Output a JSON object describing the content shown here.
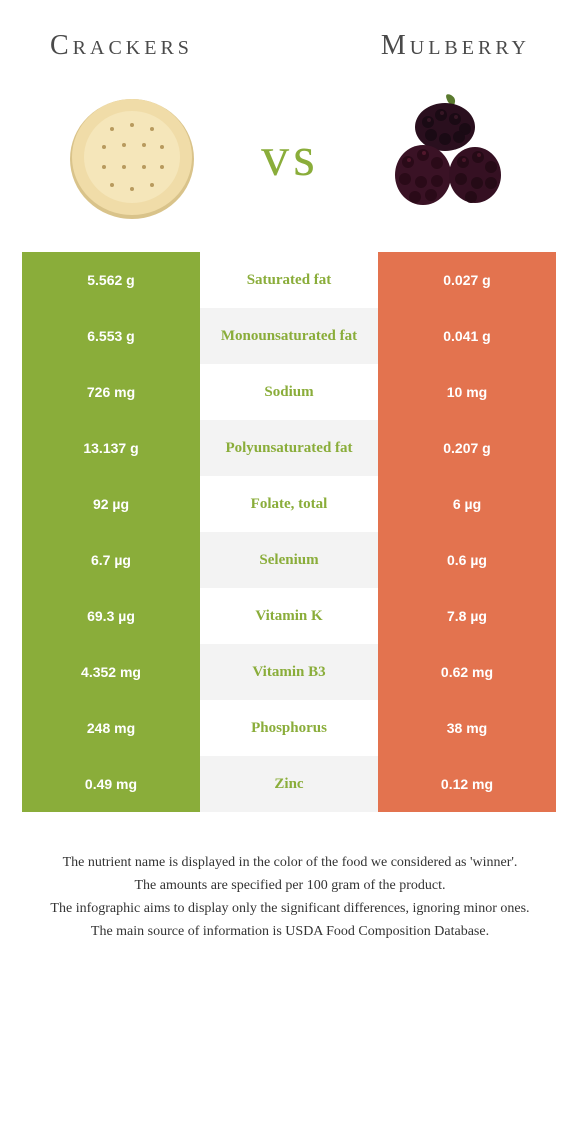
{
  "header": {
    "left_title": "Crackers",
    "right_title": "Mulberry",
    "vs": "vs"
  },
  "colors": {
    "left_winner_bg": "#8aad3a",
    "right_winner_bg": "#e3734f",
    "row_alt_bg": "#f3f3f3",
    "row_bg": "#ffffff",
    "winner_text": "#ffffff",
    "left_label_color": "#8aad3a",
    "right_label_color": "#e3734f",
    "loser_text": "#555555"
  },
  "table": {
    "rows": [
      {
        "left": "5.562 g",
        "label": "Saturated fat",
        "right": "0.027 g",
        "winner": "left"
      },
      {
        "left": "6.553 g",
        "label": "Monounsaturated fat",
        "right": "0.041 g",
        "winner": "left"
      },
      {
        "left": "726 mg",
        "label": "Sodium",
        "right": "10 mg",
        "winner": "left"
      },
      {
        "left": "13.137 g",
        "label": "Polyunsaturated fat",
        "right": "0.207 g",
        "winner": "left"
      },
      {
        "left": "92 µg",
        "label": "Folate, total",
        "right": "6 µg",
        "winner": "left"
      },
      {
        "left": "6.7 µg",
        "label": "Selenium",
        "right": "0.6 µg",
        "winner": "left"
      },
      {
        "left": "69.3 µg",
        "label": "Vitamin K",
        "right": "7.8 µg",
        "winner": "left"
      },
      {
        "left": "4.352 mg",
        "label": "Vitamin B3",
        "right": "0.62 mg",
        "winner": "left"
      },
      {
        "left": "248 mg",
        "label": "Phosphorus",
        "right": "38 mg",
        "winner": "left"
      },
      {
        "left": "0.49 mg",
        "label": "Zinc",
        "right": "0.12 mg",
        "winner": "left"
      }
    ]
  },
  "footnotes": [
    "The nutrient name is displayed in the color of the food we considered as 'winner'.",
    "The amounts are specified per 100 gram of the product.",
    "The infographic aims to display only the significant differences, ignoring minor ones.",
    "The main source of information is USDA Food Composition Database."
  ]
}
